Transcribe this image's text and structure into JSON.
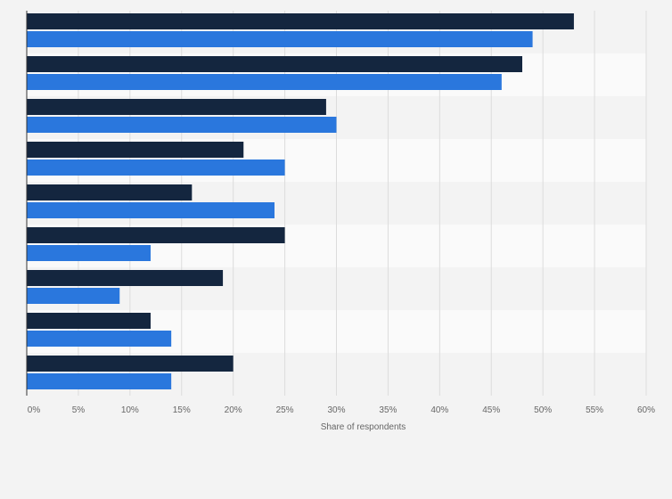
{
  "chart_data": {
    "type": "bar",
    "orientation": "horizontal",
    "title": "",
    "xlabel": "Share of respondents",
    "ylabel": "",
    "x_ticks": [
      "0%",
      "5%",
      "10%",
      "15%",
      "20%",
      "25%",
      "30%",
      "35%",
      "40%",
      "45%",
      "50%",
      "55%",
      "60%"
    ],
    "xlim": [
      0,
      60
    ],
    "grid": true,
    "legend": "none",
    "categories": [
      "",
      "",
      "",
      "",
      "",
      "",
      "",
      "",
      ""
    ],
    "series": [
      {
        "values": [
          53,
          48,
          29,
          21,
          16,
          25,
          19,
          12,
          20
        ],
        "color": "#14263f"
      },
      {
        "values": [
          49,
          46,
          30,
          25,
          24,
          12,
          9,
          14,
          14
        ],
        "color": "#2a77dd"
      }
    ],
    "colors": {
      "band_a": "#f3f3f3",
      "band_b": "#fafafa",
      "grid": "#dcdcdc",
      "axis": "#333333"
    }
  }
}
